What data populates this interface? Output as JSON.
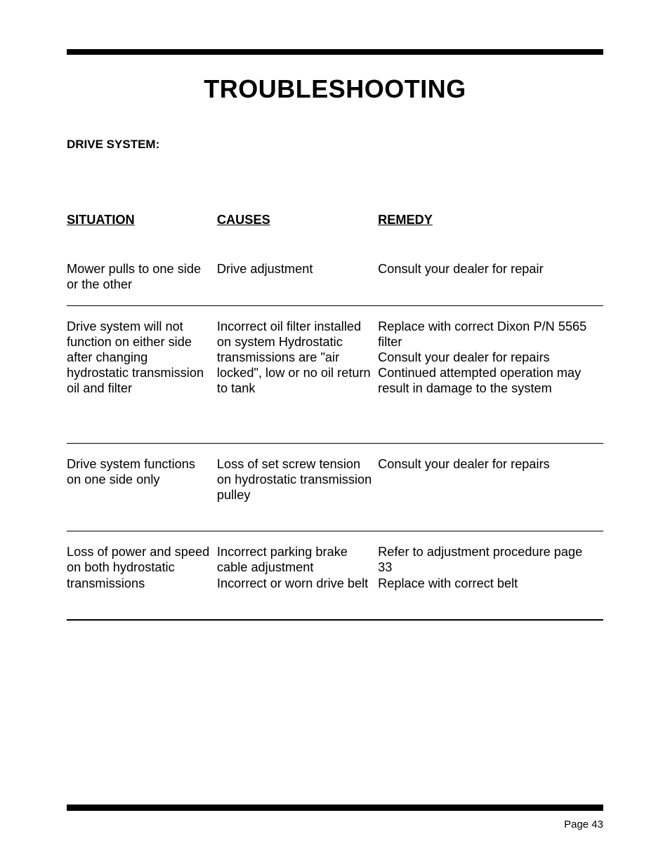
{
  "title": "TROUBLESHOOTING",
  "section_label": "DRIVE SYSTEM:",
  "columns": {
    "situation": "SITUATION",
    "causes": "CAUSES",
    "remedy": "REMEDY"
  },
  "rows": [
    {
      "situation": "Mower pulls to one side or the other",
      "causes": "Drive adjustment",
      "remedy": "Consult your dealer for repair"
    },
    {
      "situation": "Drive system will not function on either side after changing hydrostatic transmission oil and filter",
      "causes": "Incorrect oil filter installed on system Hydrostatic transmissions are \"air locked\", low or no oil return to tank",
      "remedy": "Replace with correct Dixon P/N 5565 filter\nConsult your dealer for repairs Continued attempted operation may result in damage to the system"
    },
    {
      "situation": "Drive system functions on one side only",
      "causes": "Loss of set screw tension on hydrostatic transmission pulley",
      "remedy": "Consult your dealer for repairs"
    },
    {
      "situation": "Loss of power and speed on both hydrostatic transmissions",
      "causes": "Incorrect parking brake cable adjustment\nIncorrect or worn drive belt",
      "remedy": "Refer to adjustment procedure page 33\nReplace with correct belt"
    }
  ],
  "page_number": "Page 43"
}
